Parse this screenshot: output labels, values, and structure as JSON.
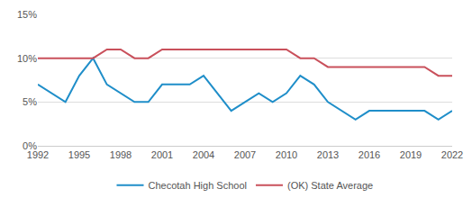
{
  "chart_data": {
    "type": "line",
    "x": [
      1992,
      1993,
      1994,
      1995,
      1996,
      1997,
      1998,
      1999,
      2000,
      2001,
      2002,
      2003,
      2004,
      2005,
      2006,
      2007,
      2008,
      2009,
      2010,
      2011,
      2012,
      2013,
      2014,
      2015,
      2016,
      2017,
      2018,
      2019,
      2020,
      2021,
      2022
    ],
    "series": [
      {
        "name": "Checotah High School",
        "color": "#1f8ec9",
        "values": [
          7,
          6,
          5,
          8,
          10,
          7,
          6,
          5,
          5,
          7,
          7,
          7,
          8,
          6,
          4,
          5,
          6,
          5,
          6,
          8,
          7,
          5,
          4,
          3,
          4,
          4,
          4,
          4,
          4,
          3,
          4
        ]
      },
      {
        "name": "(OK) State Average",
        "color": "#c9505b",
        "values": [
          10,
          10,
          10,
          10,
          10,
          11,
          11,
          10,
          10,
          11,
          11,
          11,
          11,
          11,
          11,
          11,
          11,
          11,
          11,
          10,
          10,
          9,
          9,
          9,
          9,
          9,
          9,
          9,
          9,
          8,
          8
        ]
      }
    ],
    "xlim": [
      1992,
      2022
    ],
    "xticks": [
      1992,
      1995,
      1998,
      2001,
      2004,
      2007,
      2010,
      2013,
      2016,
      2019,
      2022
    ],
    "ylim": [
      0,
      15
    ],
    "yticks": [
      {
        "value": 0,
        "label": "0%"
      },
      {
        "value": 5,
        "label": "5%"
      },
      {
        "value": 10,
        "label": "10%"
      },
      {
        "value": 15,
        "label": "15%"
      }
    ],
    "grid": true,
    "legend": "bottom"
  }
}
